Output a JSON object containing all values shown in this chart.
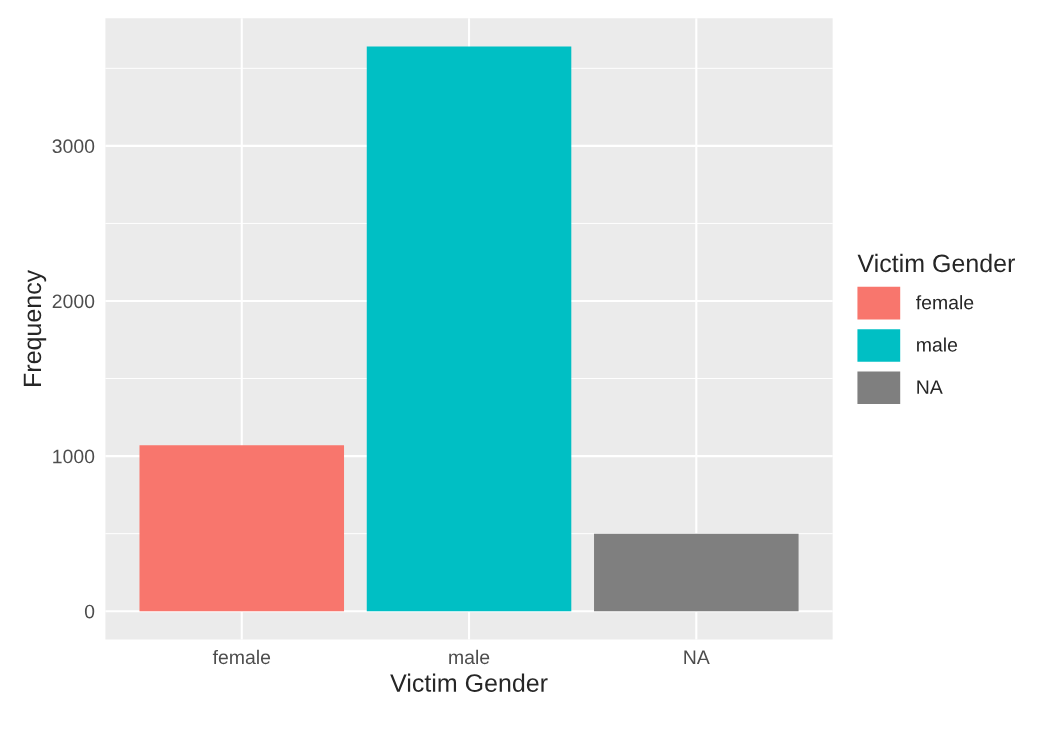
{
  "chart_data": {
    "type": "bar",
    "xlabel": "Victim Gender",
    "ylabel": "Frequency",
    "legend_title": "Victim Gender",
    "categories": [
      "female",
      "male",
      "NA"
    ],
    "series": [
      {
        "name": "female",
        "color": "#f8766d",
        "values": [
          1070,
          null,
          null
        ]
      },
      {
        "name": "male",
        "color": "#00bfc4",
        "values": [
          null,
          3640,
          null
        ]
      },
      {
        "name": "NA",
        "color": "#7f7f7f",
        "values": [
          null,
          null,
          500
        ]
      }
    ],
    "ylim": [
      -182,
      3822
    ],
    "yticks": [
      0,
      1000,
      2000,
      3000
    ],
    "grid": true,
    "legend": "right"
  }
}
